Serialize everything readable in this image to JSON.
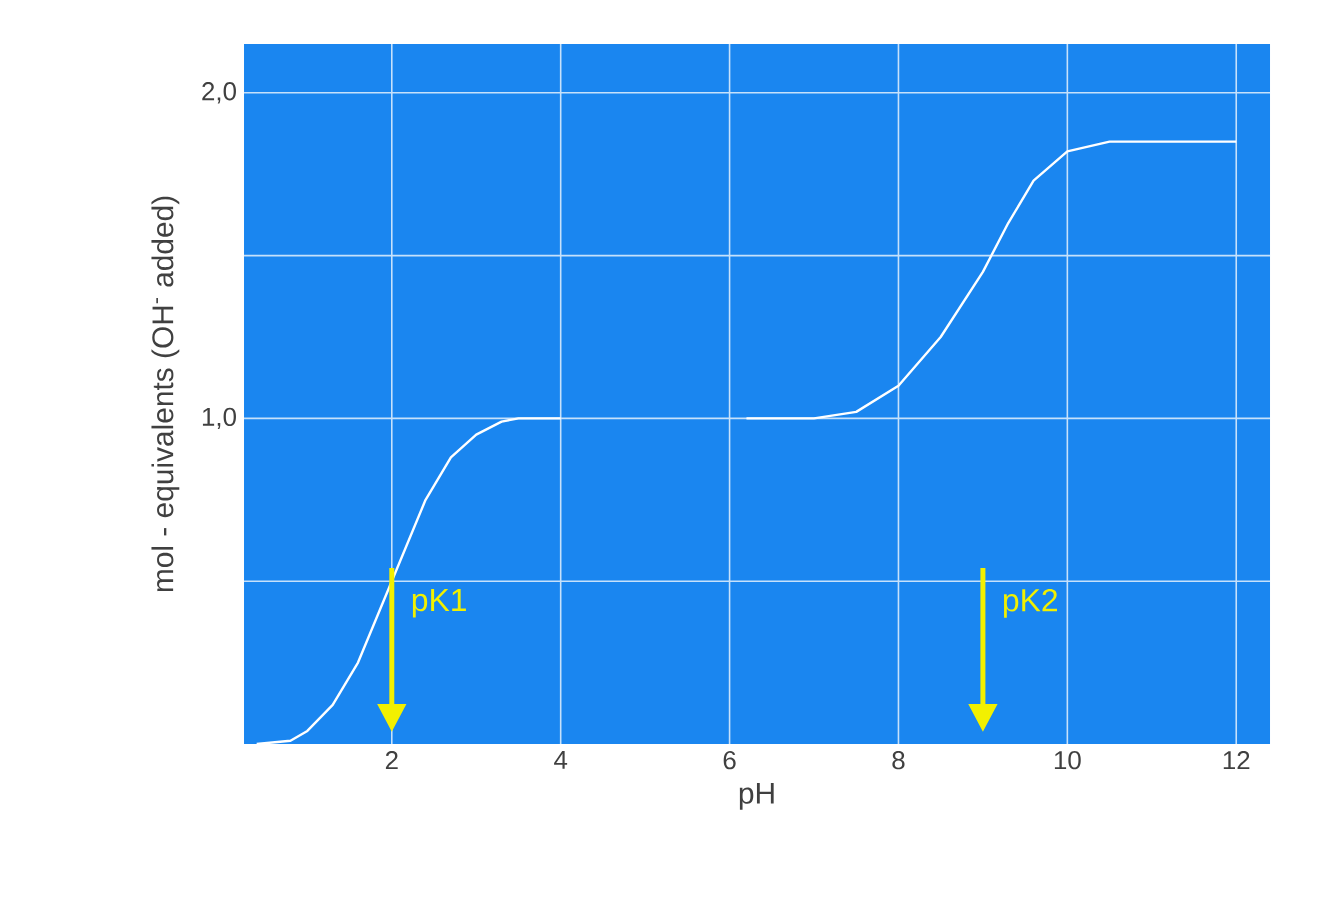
{
  "chart_data": {
    "type": "line",
    "xlabel": "pH",
    "ylabel": "mol - equivalents (OH$^{-}$ added)",
    "xlim": [
      0.25,
      12.4
    ],
    "ylim": [
      0,
      2.15
    ],
    "xticks": [
      2,
      4,
      6,
      8,
      10,
      12
    ],
    "yticks": [
      {
        "value": 0.5,
        "label": null
      },
      {
        "value": 1,
        "label": "1,0"
      },
      {
        "value": 1.5,
        "label": null
      },
      {
        "value": 2,
        "label": "2,0"
      }
    ],
    "grid": true,
    "series": [
      {
        "color": "#ffffff",
        "x": [
          0.4,
          0.8,
          1.0,
          1.3,
          1.6,
          2.0,
          2.4,
          2.7,
          3.0,
          3.3,
          3.5,
          4.0
        ],
        "values": [
          0.0,
          0.01,
          0.04,
          0.12,
          0.25,
          0.5,
          0.75,
          0.88,
          0.95,
          0.99,
          1.0,
          1.0
        ]
      },
      {
        "color": "#ffffff",
        "x": [
          6.2,
          7.0,
          7.5,
          8.0,
          8.5,
          9.0,
          9.3,
          9.6,
          10.0,
          10.5,
          12.0
        ],
        "values": [
          1.0,
          1.0,
          1.02,
          1.1,
          1.25,
          1.45,
          1.6,
          1.73,
          1.82,
          1.85,
          1.85
        ]
      }
    ],
    "ref_lines": [
      {
        "axis": "x",
        "value": 2,
        "label": "pK1",
        "color": "#f2f000"
      },
      {
        "axis": "x",
        "value": 9,
        "label": "pK2",
        "color": "#f2f000"
      }
    ]
  }
}
